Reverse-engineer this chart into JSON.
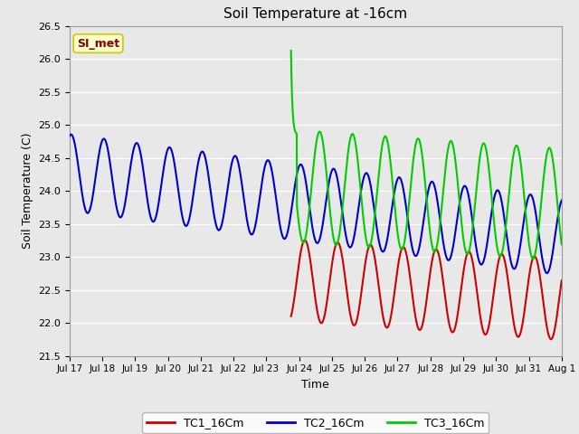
{
  "title": "Soil Temperature at -16cm",
  "xlabel": "Time",
  "ylabel": "Soil Temperature (C)",
  "ylim": [
    21.5,
    26.5
  ],
  "yticks": [
    21.5,
    22.0,
    22.5,
    23.0,
    23.5,
    24.0,
    24.5,
    25.0,
    25.5,
    26.0,
    26.5
  ],
  "fig_bg_color": "#e8e8e8",
  "plot_bg_color": "#e8e8e8",
  "grid_color": "#ffffff",
  "annotation_text": "SI_met",
  "annotation_bg": "#ffffcc",
  "annotation_border": "#cccc00",
  "legend_labels": [
    "TC1_16Cm",
    "TC2_16Cm",
    "TC3_16Cm"
  ],
  "line_colors": [
    "#cc0000",
    "#0000cc",
    "#00cc00"
  ],
  "line_width": 1.5,
  "xtick_labels": [
    "Jul 17",
    "Jul 18",
    "Jul 19",
    "Jul 20",
    "Jul 21",
    "Jul 22",
    "Jul 23",
    "Jul 24",
    "Jul 25",
    "Jul 26",
    "Jul 27",
    "Jul 28",
    "Jul 29",
    "Jul 30",
    "Jul 31",
    "Aug 1"
  ],
  "num_days": 15
}
